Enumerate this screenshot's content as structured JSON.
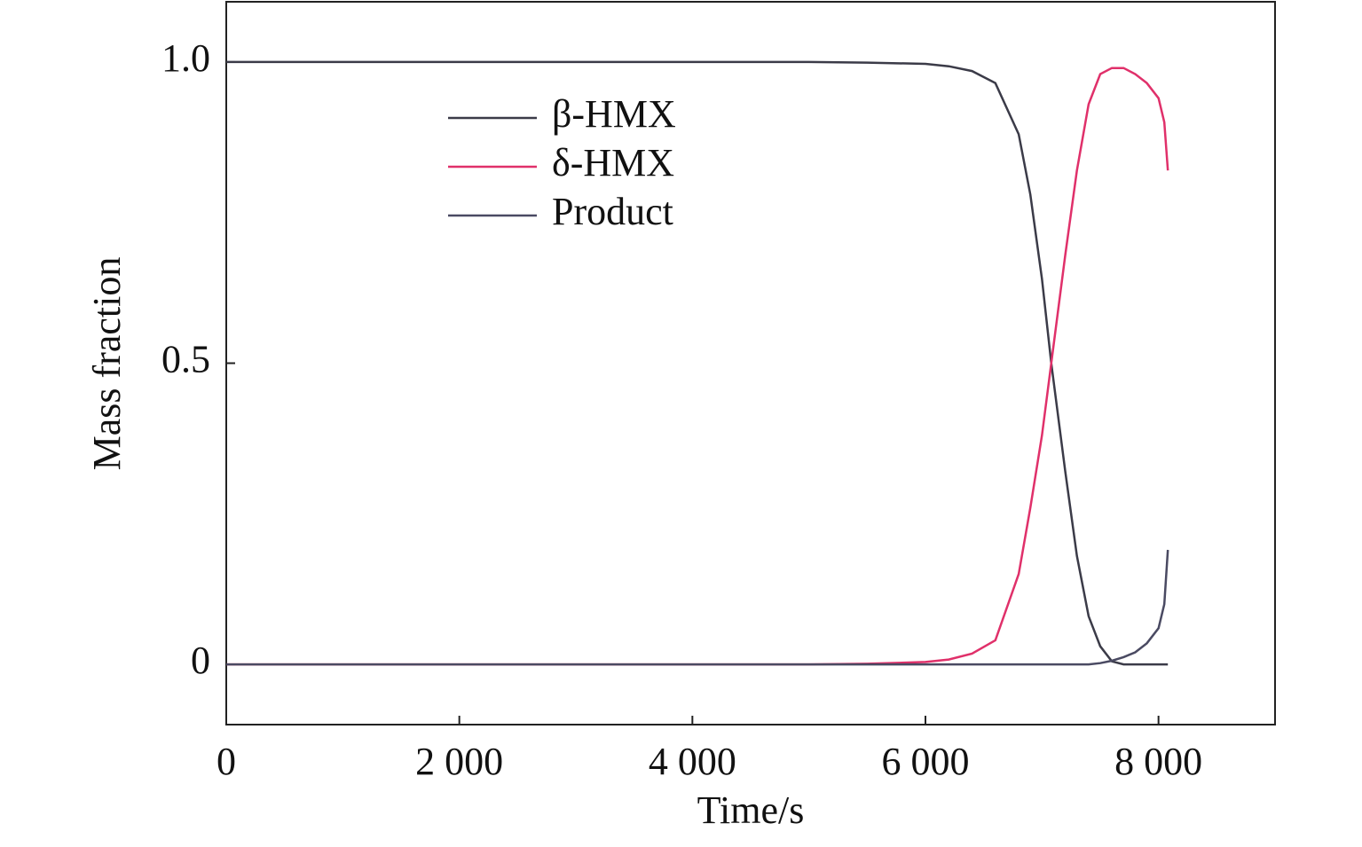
{
  "chart_data": {
    "type": "line",
    "x_label": "Time/s",
    "y_label": "Mass fraction",
    "x": [
      0,
      1000,
      2000,
      3000,
      4000,
      5000,
      5500,
      6000,
      6200,
      6400,
      6600,
      6800,
      6900,
      7000,
      7080,
      7200,
      7300,
      7400,
      7500,
      7600,
      7700,
      7800,
      7900,
      8000,
      8050,
      8080
    ],
    "series": [
      {
        "name": "β-HMX",
        "color": "#3b3b48",
        "values": [
          1,
          1,
          1,
          1,
          1,
          1,
          0.999,
          0.997,
          0.993,
          0.985,
          0.965,
          0.88,
          0.78,
          0.64,
          0.5,
          0.32,
          0.18,
          0.08,
          0.03,
          0.005,
          0,
          0,
          0,
          0,
          0,
          0
        ]
      },
      {
        "name": "δ-HMX",
        "color": "#e0306a",
        "values": [
          0,
          0,
          0,
          0,
          0,
          0,
          0.001,
          0.004,
          0.008,
          0.018,
          0.04,
          0.15,
          0.26,
          0.38,
          0.5,
          0.68,
          0.82,
          0.93,
          0.98,
          0.99,
          0.99,
          0.98,
          0.965,
          0.94,
          0.9,
          0.82
        ]
      },
      {
        "name": "Product",
        "color": "#4a4a62",
        "values": [
          0,
          0,
          0,
          0,
          0,
          0,
          0,
          0,
          0,
          0,
          0,
          0,
          0,
          0,
          0,
          0,
          0,
          0,
          0.002,
          0.006,
          0.012,
          0.02,
          0.035,
          0.06,
          0.1,
          0.19
        ]
      }
    ],
    "xlim": [
      0,
      9000
    ],
    "xticks": [
      0,
      {
        "value": 2000,
        "label": "2 000"
      },
      {
        "value": 4000,
        "label": "4 000"
      },
      {
        "value": 6000,
        "label": "6 000"
      },
      {
        "value": 8000,
        "label": "8 000"
      }
    ],
    "ylim": [
      -0.1,
      1.1
    ],
    "yticks": [
      0,
      0.5,
      {
        "value": 1,
        "label": "1.0"
      }
    ],
    "grid": false
  }
}
